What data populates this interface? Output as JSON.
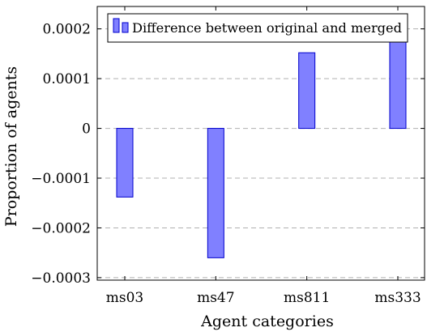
{
  "chart_data": {
    "type": "bar",
    "categories": [
      "ms03",
      "ms47",
      "ms811",
      "ms333"
    ],
    "series": [
      {
        "name": "Difference between original and merged",
        "values": [
          -0.000138,
          -0.00026,
          0.000152,
          0.00019
        ]
      }
    ],
    "xlabel": "Agent categories",
    "ylabel": "Proportion of agents",
    "ylim": [
      -0.000305,
      0.000245
    ],
    "yticks": [
      -0.0003,
      -0.0002,
      -0.0001,
      0,
      0.0001,
      0.0002
    ],
    "ytick_labels": [
      "−0.0003",
      "−0.0002",
      "−0.0001",
      "0",
      "0.0001",
      "0.0002"
    ],
    "grid": "horizontal dashed",
    "legend_position": "top",
    "colors": {
      "bar_fill": "#8080ff",
      "bar_stroke": "#0000cc",
      "grid": "#b0b0b0"
    }
  }
}
